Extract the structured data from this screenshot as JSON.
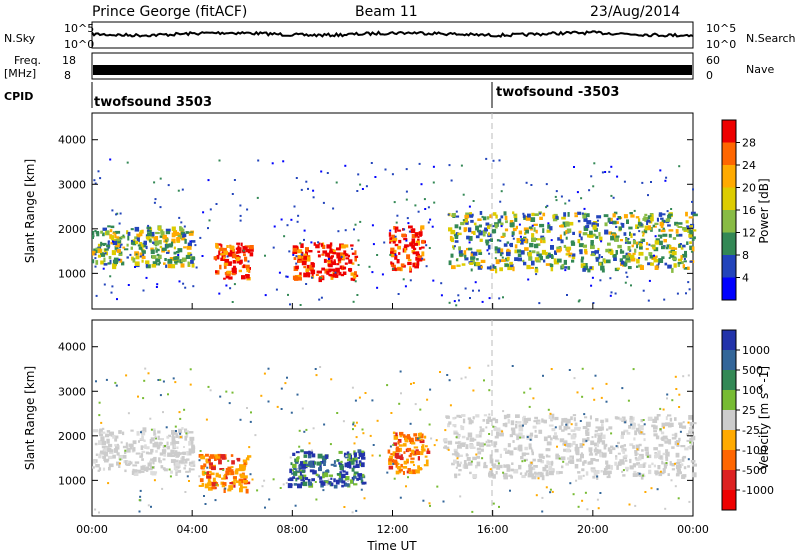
{
  "header": {
    "station": "Prince George (fitACF)",
    "beam": "Beam 11",
    "date": "23/Aug/2014"
  },
  "top_panels": {
    "nsky_label": "N.Sky",
    "nsky_ticks": [
      "10^5",
      "10^0"
    ],
    "nsearch_label": "N.Search",
    "nsearch_ticks": [
      "10^5",
      "10^0"
    ],
    "freq_label": "Freq.",
    "freq_unit": "[MHz]",
    "freq_ticks": [
      "18",
      "8"
    ],
    "nave_label": "Nave",
    "nave_ticks": [
      "60",
      "0"
    ],
    "cpid_label": "CPID",
    "cpid_segments": [
      {
        "label": "twofsound 3503",
        "start_hour": 0
      },
      {
        "label": "twofsound -3503",
        "start_hour": 16
      }
    ]
  },
  "chart_data": [
    {
      "type": "heatmap",
      "panel": "power",
      "xlabel": "",
      "ylabel": "Slant Range [km]",
      "xlim_hours": [
        0,
        24
      ],
      "ylim": [
        200,
        4600
      ],
      "y_ticks": [
        "4000",
        "3000",
        "2000",
        "1000"
      ],
      "colorbar": {
        "label": "Power [dB]",
        "ticks": [
          "28",
          "24",
          "20",
          "16",
          "12",
          "8",
          "4"
        ],
        "colors": [
          "#ee0000",
          "#ff6600",
          "#ffaa00",
          "#ddcc00",
          "#88bb44",
          "#338855",
          "#2244bb",
          "#0000ff"
        ]
      },
      "echo_regions": [
        {
          "t0": 0.0,
          "t1": 4.0,
          "r0": 1200,
          "r1": 2100,
          "level": "mid"
        },
        {
          "t0": 4.8,
          "t1": 6.3,
          "r0": 900,
          "r1": 1700,
          "level": "high"
        },
        {
          "t0": 8.0,
          "t1": 10.5,
          "r0": 900,
          "r1": 1700,
          "level": "high"
        },
        {
          "t0": 11.8,
          "t1": 13.2,
          "r0": 1100,
          "r1": 2100,
          "level": "high"
        },
        {
          "t0": 14.2,
          "t1": 24.0,
          "r0": 1100,
          "r1": 2400,
          "level": "mid"
        }
      ]
    },
    {
      "type": "heatmap",
      "panel": "velocity",
      "xlabel": "Time UT",
      "ylabel": "Slant Range [km]",
      "xlim_hours": [
        0,
        24
      ],
      "ylim": [
        200,
        4600
      ],
      "x_ticks": [
        "00:00",
        "04:00",
        "08:00",
        "12:00",
        "16:00",
        "20:00",
        "00:00"
      ],
      "y_ticks": [
        "4000",
        "3000",
        "2000",
        "1000"
      ],
      "colorbar": {
        "label": "Velocity [m s^-1]",
        "ticks": [
          "1000",
          "500",
          "100",
          "25",
          "-25",
          "-100",
          "-500",
          "-1000"
        ],
        "colors": [
          "#2233aa",
          "#336699",
          "#338855",
          "#77bb33",
          "#cccccc",
          "#ffaa00",
          "#ff6600",
          "#dd2222",
          "#ee0000"
        ]
      },
      "echo_regions": [
        {
          "t0": 0.0,
          "t1": 4.0,
          "r0": 1200,
          "r1": 2200,
          "level": "ground"
        },
        {
          "t0": 4.2,
          "t1": 6.2,
          "r0": 800,
          "r1": 1600,
          "level": "neg"
        },
        {
          "t0": 7.8,
          "t1": 10.8,
          "r0": 900,
          "r1": 1700,
          "level": "pos"
        },
        {
          "t0": 11.8,
          "t1": 13.4,
          "r0": 1200,
          "r1": 2100,
          "level": "neg"
        },
        {
          "t0": 14.0,
          "t1": 24.0,
          "r0": 1100,
          "r1": 2500,
          "level": "ground"
        }
      ]
    }
  ]
}
